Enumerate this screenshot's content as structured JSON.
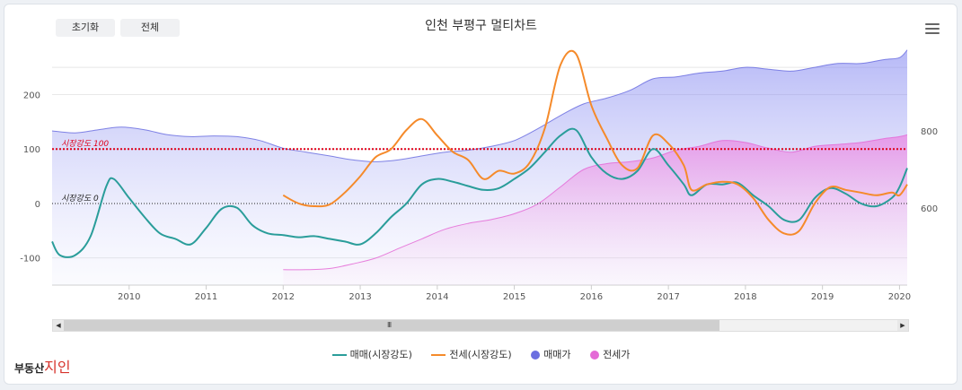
{
  "buttons": {
    "reset": "초기화",
    "all": "전체"
  },
  "brand": {
    "name": "부동산",
    "accent": "지인"
  },
  "chart_data": {
    "type": "line",
    "title": "인천 부평구 멀티차트",
    "x_axis": {
      "range": [
        2009.0,
        2020.1
      ],
      "tick_labels": [
        "2010",
        "2011",
        "2012",
        "2013",
        "2014",
        "2015",
        "2016",
        "2017",
        "2018",
        "2019",
        "2020"
      ]
    },
    "y_axis_left": {
      "range": [
        -150,
        275
      ],
      "tick_labels": [
        "200",
        "100",
        "0",
        "-100"
      ]
    },
    "y_axis_right": {
      "range": [
        400,
        1000
      ],
      "tick_labels": [
        "800",
        "600"
      ]
    },
    "reference_lines": [
      {
        "label": "시장강도 100",
        "value": 100,
        "color": "#e0001a"
      },
      {
        "label": "시장강도 0",
        "value": 0,
        "color": "#222222"
      }
    ],
    "colors": {
      "sale_strength": "#2a9d9a",
      "jeonse_strength": "#f58a2a",
      "sale_price": "#6b6fe0",
      "jeonse_price": "#e46ad6"
    },
    "series": [
      {
        "name": "매매(시장강도)",
        "axis": "left",
        "kind": "line",
        "x": [
          2009.0,
          2009.1,
          2009.3,
          2009.5,
          2009.7,
          2009.8,
          2010.0,
          2010.2,
          2010.4,
          2010.6,
          2010.8,
          2011.0,
          2011.2,
          2011.4,
          2011.6,
          2011.8,
          2012.0,
          2012.2,
          2012.4,
          2012.6,
          2012.8,
          2013.0,
          2013.2,
          2013.4,
          2013.6,
          2013.8,
          2014.0,
          2014.2,
          2014.4,
          2014.6,
          2014.8,
          2015.0,
          2015.2,
          2015.4,
          2015.6,
          2015.8,
          2016.0,
          2016.2,
          2016.4,
          2016.6,
          2016.8,
          2017.0,
          2017.2,
          2017.3,
          2017.5,
          2017.7,
          2017.9,
          2018.1,
          2018.3,
          2018.5,
          2018.7,
          2018.9,
          2019.1,
          2019.3,
          2019.5,
          2019.7,
          2019.9,
          2020.0,
          2020.1
        ],
        "y": [
          -70,
          -95,
          -95,
          -60,
          30,
          45,
          10,
          -25,
          -55,
          -65,
          -75,
          -45,
          -10,
          -8,
          -40,
          -55,
          -58,
          -62,
          -60,
          -65,
          -70,
          -75,
          -55,
          -25,
          0,
          35,
          45,
          40,
          32,
          25,
          28,
          45,
          65,
          95,
          125,
          135,
          85,
          55,
          45,
          60,
          100,
          70,
          35,
          15,
          35,
          35,
          38,
          15,
          -5,
          -30,
          -30,
          10,
          28,
          18,
          0,
          -5,
          10,
          30,
          65
        ]
      },
      {
        "name": "전세(시장강도)",
        "axis": "left",
        "kind": "line",
        "x": [
          2012.0,
          2012.2,
          2012.4,
          2012.6,
          2012.8,
          2013.0,
          2013.2,
          2013.4,
          2013.6,
          2013.8,
          2014.0,
          2014.2,
          2014.4,
          2014.6,
          2014.8,
          2015.0,
          2015.2,
          2015.4,
          2015.6,
          2015.8,
          2016.0,
          2016.2,
          2016.4,
          2016.6,
          2016.8,
          2017.0,
          2017.2,
          2017.3,
          2017.5,
          2017.7,
          2017.9,
          2018.1,
          2018.3,
          2018.5,
          2018.7,
          2018.9,
          2019.1,
          2019.3,
          2019.5,
          2019.7,
          2019.9,
          2020.0,
          2020.1
        ],
        "y": [
          15,
          0,
          -5,
          -2,
          20,
          50,
          85,
          100,
          135,
          155,
          125,
          95,
          80,
          45,
          60,
          55,
          75,
          140,
          255,
          275,
          180,
          120,
          70,
          65,
          125,
          110,
          70,
          25,
          35,
          40,
          35,
          10,
          -30,
          -55,
          -50,
          0,
          30,
          25,
          20,
          15,
          20,
          15,
          35
        ]
      },
      {
        "name": "매매가",
        "axis": "right",
        "kind": "area",
        "x": [
          2009.0,
          2009.3,
          2009.6,
          2009.9,
          2010.2,
          2010.5,
          2010.8,
          2011.1,
          2011.4,
          2011.7,
          2012.0,
          2012.3,
          2012.6,
          2012.9,
          2013.2,
          2013.5,
          2013.8,
          2014.1,
          2014.4,
          2014.7,
          2015.0,
          2015.3,
          2015.6,
          2015.9,
          2016.2,
          2016.5,
          2016.8,
          2017.1,
          2017.4,
          2017.7,
          2018.0,
          2018.3,
          2018.6,
          2018.9,
          2019.2,
          2019.5,
          2019.8,
          2020.0,
          2020.1
        ],
        "y": [
          800,
          795,
          803,
          810,
          803,
          790,
          785,
          787,
          785,
          775,
          755,
          745,
          735,
          725,
          720,
          725,
          735,
          745,
          750,
          760,
          775,
          805,
          840,
          870,
          885,
          905,
          935,
          940,
          950,
          955,
          965,
          960,
          955,
          965,
          975,
          975,
          985,
          990,
          1010
        ]
      },
      {
        "name": "전세가",
        "axis": "right",
        "kind": "area",
        "x": [
          2012.0,
          2012.3,
          2012.6,
          2012.9,
          2013.2,
          2013.5,
          2013.8,
          2014.1,
          2014.4,
          2014.7,
          2015.0,
          2015.3,
          2015.6,
          2015.9,
          2016.2,
          2016.5,
          2016.8,
          2017.1,
          2017.4,
          2017.7,
          2018.0,
          2018.3,
          2018.6,
          2018.9,
          2019.2,
          2019.5,
          2019.8,
          2020.0,
          2020.1
        ],
        "y": [
          440,
          440,
          443,
          455,
          470,
          495,
          520,
          545,
          560,
          570,
          585,
          610,
          655,
          700,
          715,
          720,
          730,
          750,
          760,
          775,
          770,
          755,
          745,
          760,
          765,
          770,
          780,
          785,
          790
        ]
      }
    ]
  }
}
